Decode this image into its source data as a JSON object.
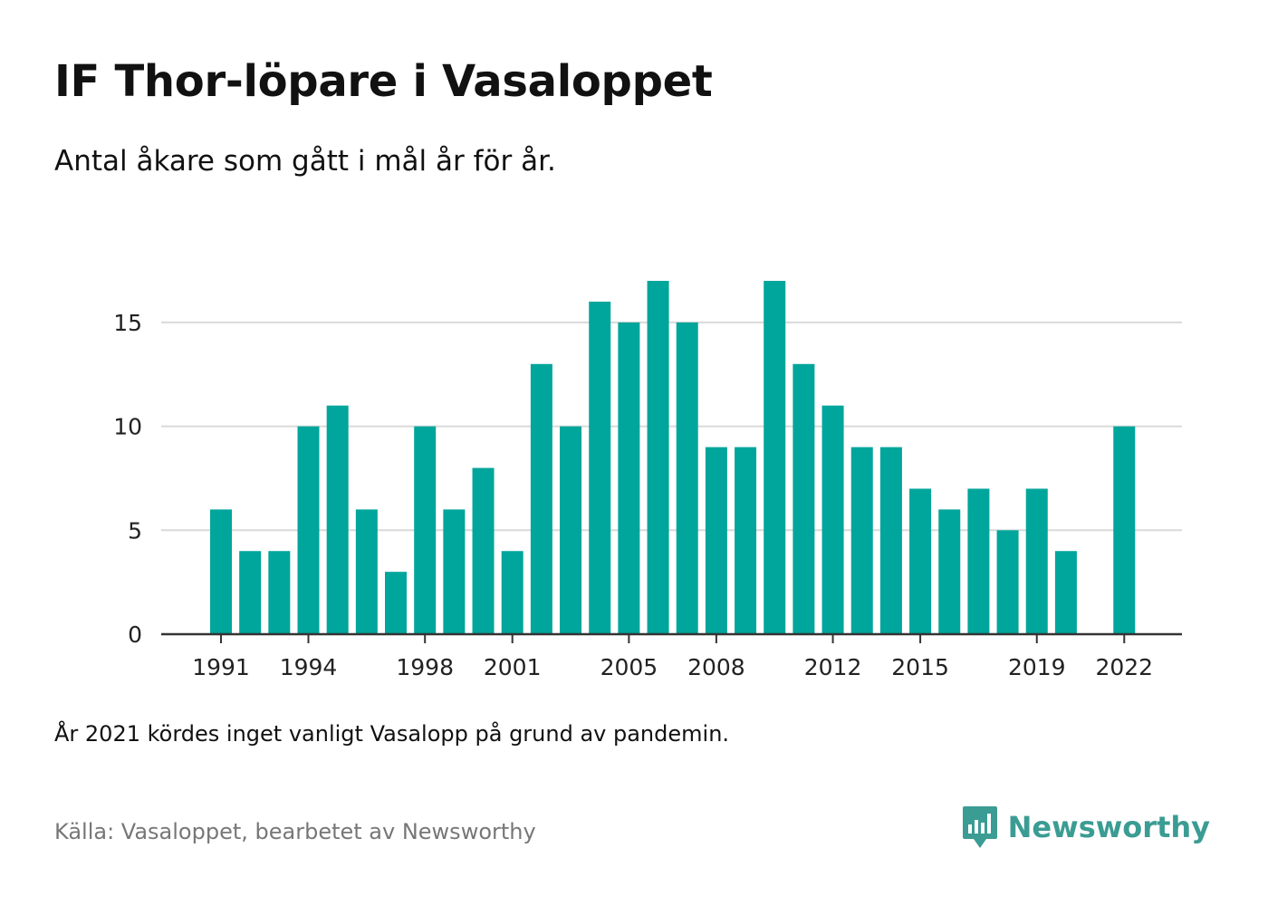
{
  "title": "IF Thor-löpare i Vasaloppet",
  "subtitle": "Antal åkare som gått i mål år för år.",
  "note": "År 2021 kördes inget vanligt Vasalopp på grund av pandemin.",
  "source": "Källa: Vasaloppet, bearbetet av Newsworthy",
  "brand": {
    "name": "Newsworthy",
    "icon": "bar-chart-speech-bubble-icon",
    "color": "#3b9c93"
  },
  "chart_data": {
    "type": "bar",
    "categories": [
      "1991",
      "1992",
      "1993",
      "1994",
      "1995",
      "1996",
      "1997",
      "1998",
      "1999",
      "2000",
      "2001",
      "2002",
      "2003",
      "2004",
      "2005",
      "2006",
      "2007",
      "2008",
      "2009",
      "2010",
      "2011",
      "2012",
      "2013",
      "2014",
      "2015",
      "2016",
      "2017",
      "2018",
      "2019",
      "2020",
      "2021",
      "2022"
    ],
    "values": [
      6,
      4,
      4,
      10,
      11,
      6,
      3,
      10,
      6,
      8,
      4,
      13,
      10,
      16,
      15,
      17,
      15,
      9,
      9,
      17,
      13,
      11,
      9,
      9,
      7,
      6,
      7,
      5,
      7,
      4,
      null,
      10
    ],
    "x_tick_labels": [
      "1991",
      "1994",
      "1998",
      "2001",
      "2005",
      "2008",
      "2012",
      "2015",
      "2019",
      "2022"
    ],
    "y_ticks": [
      0,
      5,
      10,
      15
    ],
    "ylim": [
      0,
      17
    ],
    "grid": true,
    "bar_color": "#00a59b",
    "grid_color": "#d9d9d9",
    "axis_color": "#333333"
  }
}
